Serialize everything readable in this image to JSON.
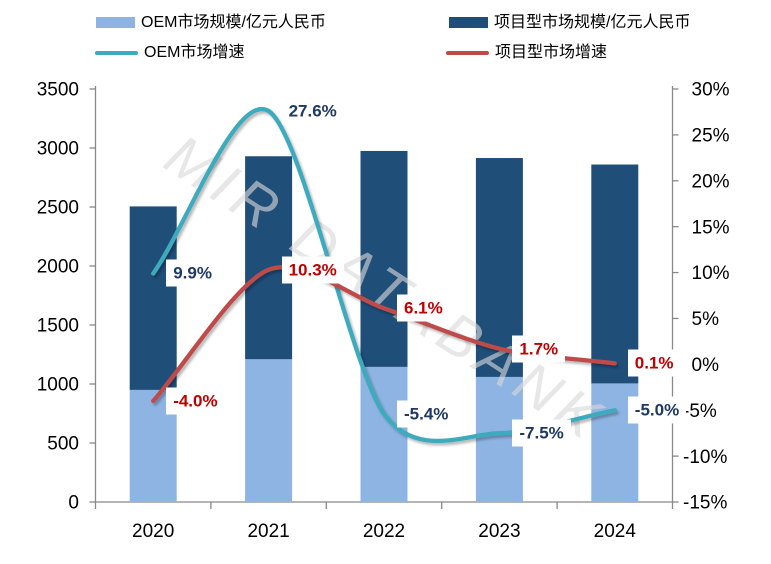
{
  "watermark": "MIR DATABANK",
  "colors": {
    "oem_bar": "#8EB4E3",
    "project_bar": "#1F4E79",
    "oem_line": "#3EAABE",
    "project_line": "#BE4B48",
    "oem_label_text": "#1F3864",
    "project_label_text": "#C00000",
    "axis_line": "#898989",
    "axis_text": "#000000",
    "watermark_gray": "#D9D9D9"
  },
  "legend": {
    "items": [
      {
        "label": "OEM市场规模/亿元人民币",
        "swatch": "rect",
        "color": "#8EB4E3"
      },
      {
        "label": "项目型市场规模/亿元人民币",
        "swatch": "rect",
        "color": "#1F4E79"
      },
      {
        "label": "OEM市场增速",
        "swatch": "line",
        "color": "#3EAABE"
      },
      {
        "label": "项目型市场增速",
        "swatch": "line",
        "color": "#BE4B48"
      }
    ]
  },
  "chart_data": {
    "type": "bar",
    "subtype": "stacked-bars-with-smooth-lines",
    "categories": [
      "2020",
      "2021",
      "2022",
      "2023",
      "2024"
    ],
    "bar_series": [
      {
        "name": "OEM市场规模/亿元人民币",
        "axis": "left",
        "color": "#8EB4E3",
        "values": [
          950,
          1210,
          1145,
          1060,
          1005
        ]
      },
      {
        "name": "项目型市场规模/亿元人民币",
        "axis": "left",
        "color": "#1F4E79",
        "values": [
          1555,
          1720,
          1830,
          1855,
          1855
        ]
      }
    ],
    "line_series": [
      {
        "name": "OEM市场增速",
        "axis": "right",
        "color": "#3EAABE",
        "values": [
          9.9,
          27.6,
          -5.4,
          -7.5,
          -5.0
        ],
        "labels": [
          "9.9%",
          "27.6%",
          "-5.4%",
          "-7.5%",
          "-5.0%"
        ],
        "label_color": "#1F3864"
      },
      {
        "name": "项目型市场增速",
        "axis": "right",
        "color": "#BE4B48",
        "values": [
          -4.0,
          10.3,
          6.1,
          1.7,
          0.1
        ],
        "labels": [
          "-4.0%",
          "10.3%",
          "6.1%",
          "1.7%",
          "0.1%"
        ],
        "label_color": "#C00000"
      }
    ],
    "left_axis": {
      "min": 0,
      "max": 3500,
      "step": 500,
      "ticks": [
        "0",
        "500",
        "1000",
        "1500",
        "2000",
        "2500",
        "3000",
        "3500"
      ]
    },
    "right_axis": {
      "min": -15,
      "max": 30,
      "step": 5,
      "ticks": [
        "30%",
        "25%",
        "20%",
        "15%",
        "10%",
        "5%",
        "0%",
        "-5%",
        "-10%",
        "-15%"
      ]
    },
    "stacked": true,
    "grid": false,
    "legend_position": "top"
  }
}
